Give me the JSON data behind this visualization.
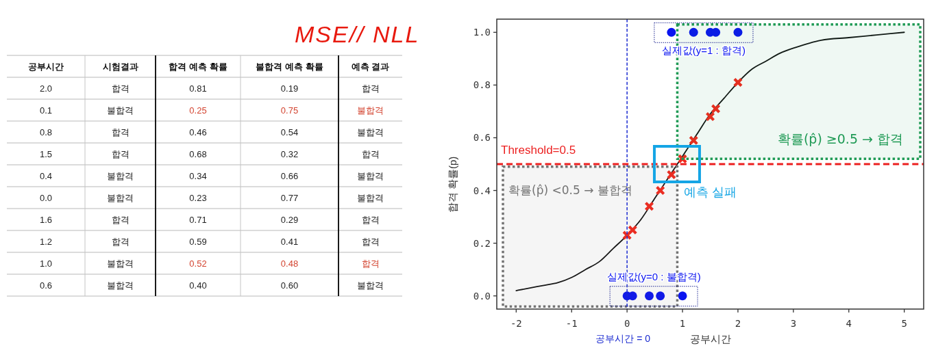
{
  "chart_data": [
    {
      "type": "other",
      "categories": [
        "공부시간",
        "시험결과",
        "합격 예측 확률",
        "불합격 예측 확률",
        "예측 결과"
      ],
      "cell_labels": [
        [
          "2.0",
          "합격",
          "0.81",
          "0.19",
          "합격"
        ],
        [
          "0.1",
          "불합격",
          "0.25",
          "0.75",
          "불합격"
        ],
        [
          "0.8",
          "합격",
          "0.46",
          "0.54",
          "불합격"
        ],
        [
          "1.5",
          "합격",
          "0.68",
          "0.32",
          "합격"
        ],
        [
          "0.4",
          "불합격",
          "0.34",
          "0.66",
          "불합격"
        ],
        [
          "0.0",
          "불합격",
          "0.23",
          "0.77",
          "불합격"
        ],
        [
          "1.6",
          "합격",
          "0.71",
          "0.29",
          "합격"
        ],
        [
          "1.2",
          "합격",
          "0.59",
          "0.41",
          "합격"
        ],
        [
          "1.0",
          "불합격",
          "0.52",
          "0.48",
          "합격"
        ],
        [
          "0.6",
          "불합격",
          "0.40",
          "0.60",
          "불합격"
        ]
      ],
      "colors": [
        [
          "#222222",
          "#222222",
          "#222222",
          "#222222",
          "#222222"
        ],
        [
          "#222222",
          "#222222",
          "#d3432f",
          "#d3432f",
          "#d3432f"
        ],
        [
          "#222222",
          "#222222",
          "#222222",
          "#222222",
          "#222222"
        ],
        [
          "#222222",
          "#222222",
          "#222222",
          "#222222",
          "#222222"
        ],
        [
          "#222222",
          "#222222",
          "#222222",
          "#222222",
          "#222222"
        ],
        [
          "#222222",
          "#222222",
          "#222222",
          "#222222",
          "#222222"
        ],
        [
          "#222222",
          "#222222",
          "#222222",
          "#222222",
          "#222222"
        ],
        [
          "#222222",
          "#222222",
          "#222222",
          "#222222",
          "#222222"
        ],
        [
          "#222222",
          "#222222",
          "#d3432f",
          "#d3432f",
          "#d3432f"
        ],
        [
          "#222222",
          "#222222",
          "#222222",
          "#222222",
          "#222222"
        ]
      ],
      "annotations": [
        "MSE// NLL"
      ]
    },
    {
      "type": "scatter",
      "xlabel": "공부시간",
      "ylabel": "합격 확률(p)",
      "xlim": [
        -2.35,
        5.35
      ],
      "ylim": [
        -0.05,
        1.05
      ],
      "xticks": [
        -2,
        -1,
        0,
        1,
        2,
        3,
        4,
        5
      ],
      "yticks": [
        {
          "value": 0,
          "label": "0.0"
        },
        {
          "value": 0.2,
          "label": "0.2"
        },
        {
          "value": 0.4,
          "label": "0.4"
        },
        {
          "value": 0.6,
          "label": "0.6"
        },
        {
          "value": 0.8,
          "label": "0.8"
        },
        {
          "value": 1,
          "label": "1.0"
        }
      ],
      "series": [
        {
          "type": "line",
          "color": "#111111",
          "line_style": "solid",
          "x": [
            -2,
            -1.75,
            -1.5,
            -1.25,
            -1,
            -0.75,
            -0.5,
            -0.25,
            0,
            0.25,
            0.5,
            0.75,
            1,
            1.25,
            1.5,
            1.75,
            2,
            2.25,
            2.5,
            2.75,
            3,
            3.5,
            4,
            4.5,
            5
          ],
          "values": [
            0.02,
            0.03,
            0.04,
            0.05,
            0.07,
            0.1,
            0.13,
            0.18,
            0.23,
            0.29,
            0.37,
            0.45,
            0.53,
            0.61,
            0.69,
            0.75,
            0.81,
            0.86,
            0.89,
            0.92,
            0.94,
            0.97,
            0.98,
            0.99,
            1.0
          ]
        },
        {
          "type": "scatter",
          "color": "#f4281c",
          "marker": "cross",
          "x": [
            2.0,
            0.1,
            0.8,
            1.5,
            0.4,
            0.0,
            1.6,
            1.2,
            1.0,
            0.6
          ],
          "values": [
            0.81,
            0.25,
            0.46,
            0.68,
            0.34,
            0.23,
            0.71,
            0.59,
            0.52,
            0.4
          ]
        },
        {
          "type": "scatter",
          "name": "실제값(y=1 : 합격)",
          "color": "#0a14f0",
          "marker": "circle",
          "x": [
            2.0,
            0.8,
            1.5,
            1.6,
            1.2
          ],
          "values": [
            1,
            1,
            1,
            1,
            1
          ]
        },
        {
          "type": "scatter",
          "name": "실제값(y=0 : 불합격)",
          "color": "#0a14f0",
          "marker": "circle",
          "x": [
            0.1,
            0.4,
            0.0,
            1.0,
            0.6
          ],
          "values": [
            0,
            0,
            0,
            0,
            0
          ]
        }
      ],
      "ref_lines": [
        {
          "axis": "x",
          "value": 0,
          "label": "공부시간 = 0",
          "color": "#1a2ad0",
          "line_style": "dashed"
        },
        {
          "axis": "y",
          "value": 0.5,
          "label": "Threshold=0.5",
          "color": "#ec1f1f",
          "line_style": "dashed"
        }
      ],
      "bands": [
        {
          "axis": "y",
          "from": 0.52,
          "to": 1.03,
          "label": "확률(p̂) ≥0.5 → 합격",
          "color": "#1f9a55"
        },
        {
          "axis": "y",
          "from": -0.04,
          "to": 0.49,
          "label": "확률(p̂) <0.5 → 불합격",
          "color": "#747474"
        }
      ],
      "annotations": [
        {
          "text": "예측 실패",
          "x": 0.9,
          "y": 0.5
        }
      ]
    }
  ]
}
